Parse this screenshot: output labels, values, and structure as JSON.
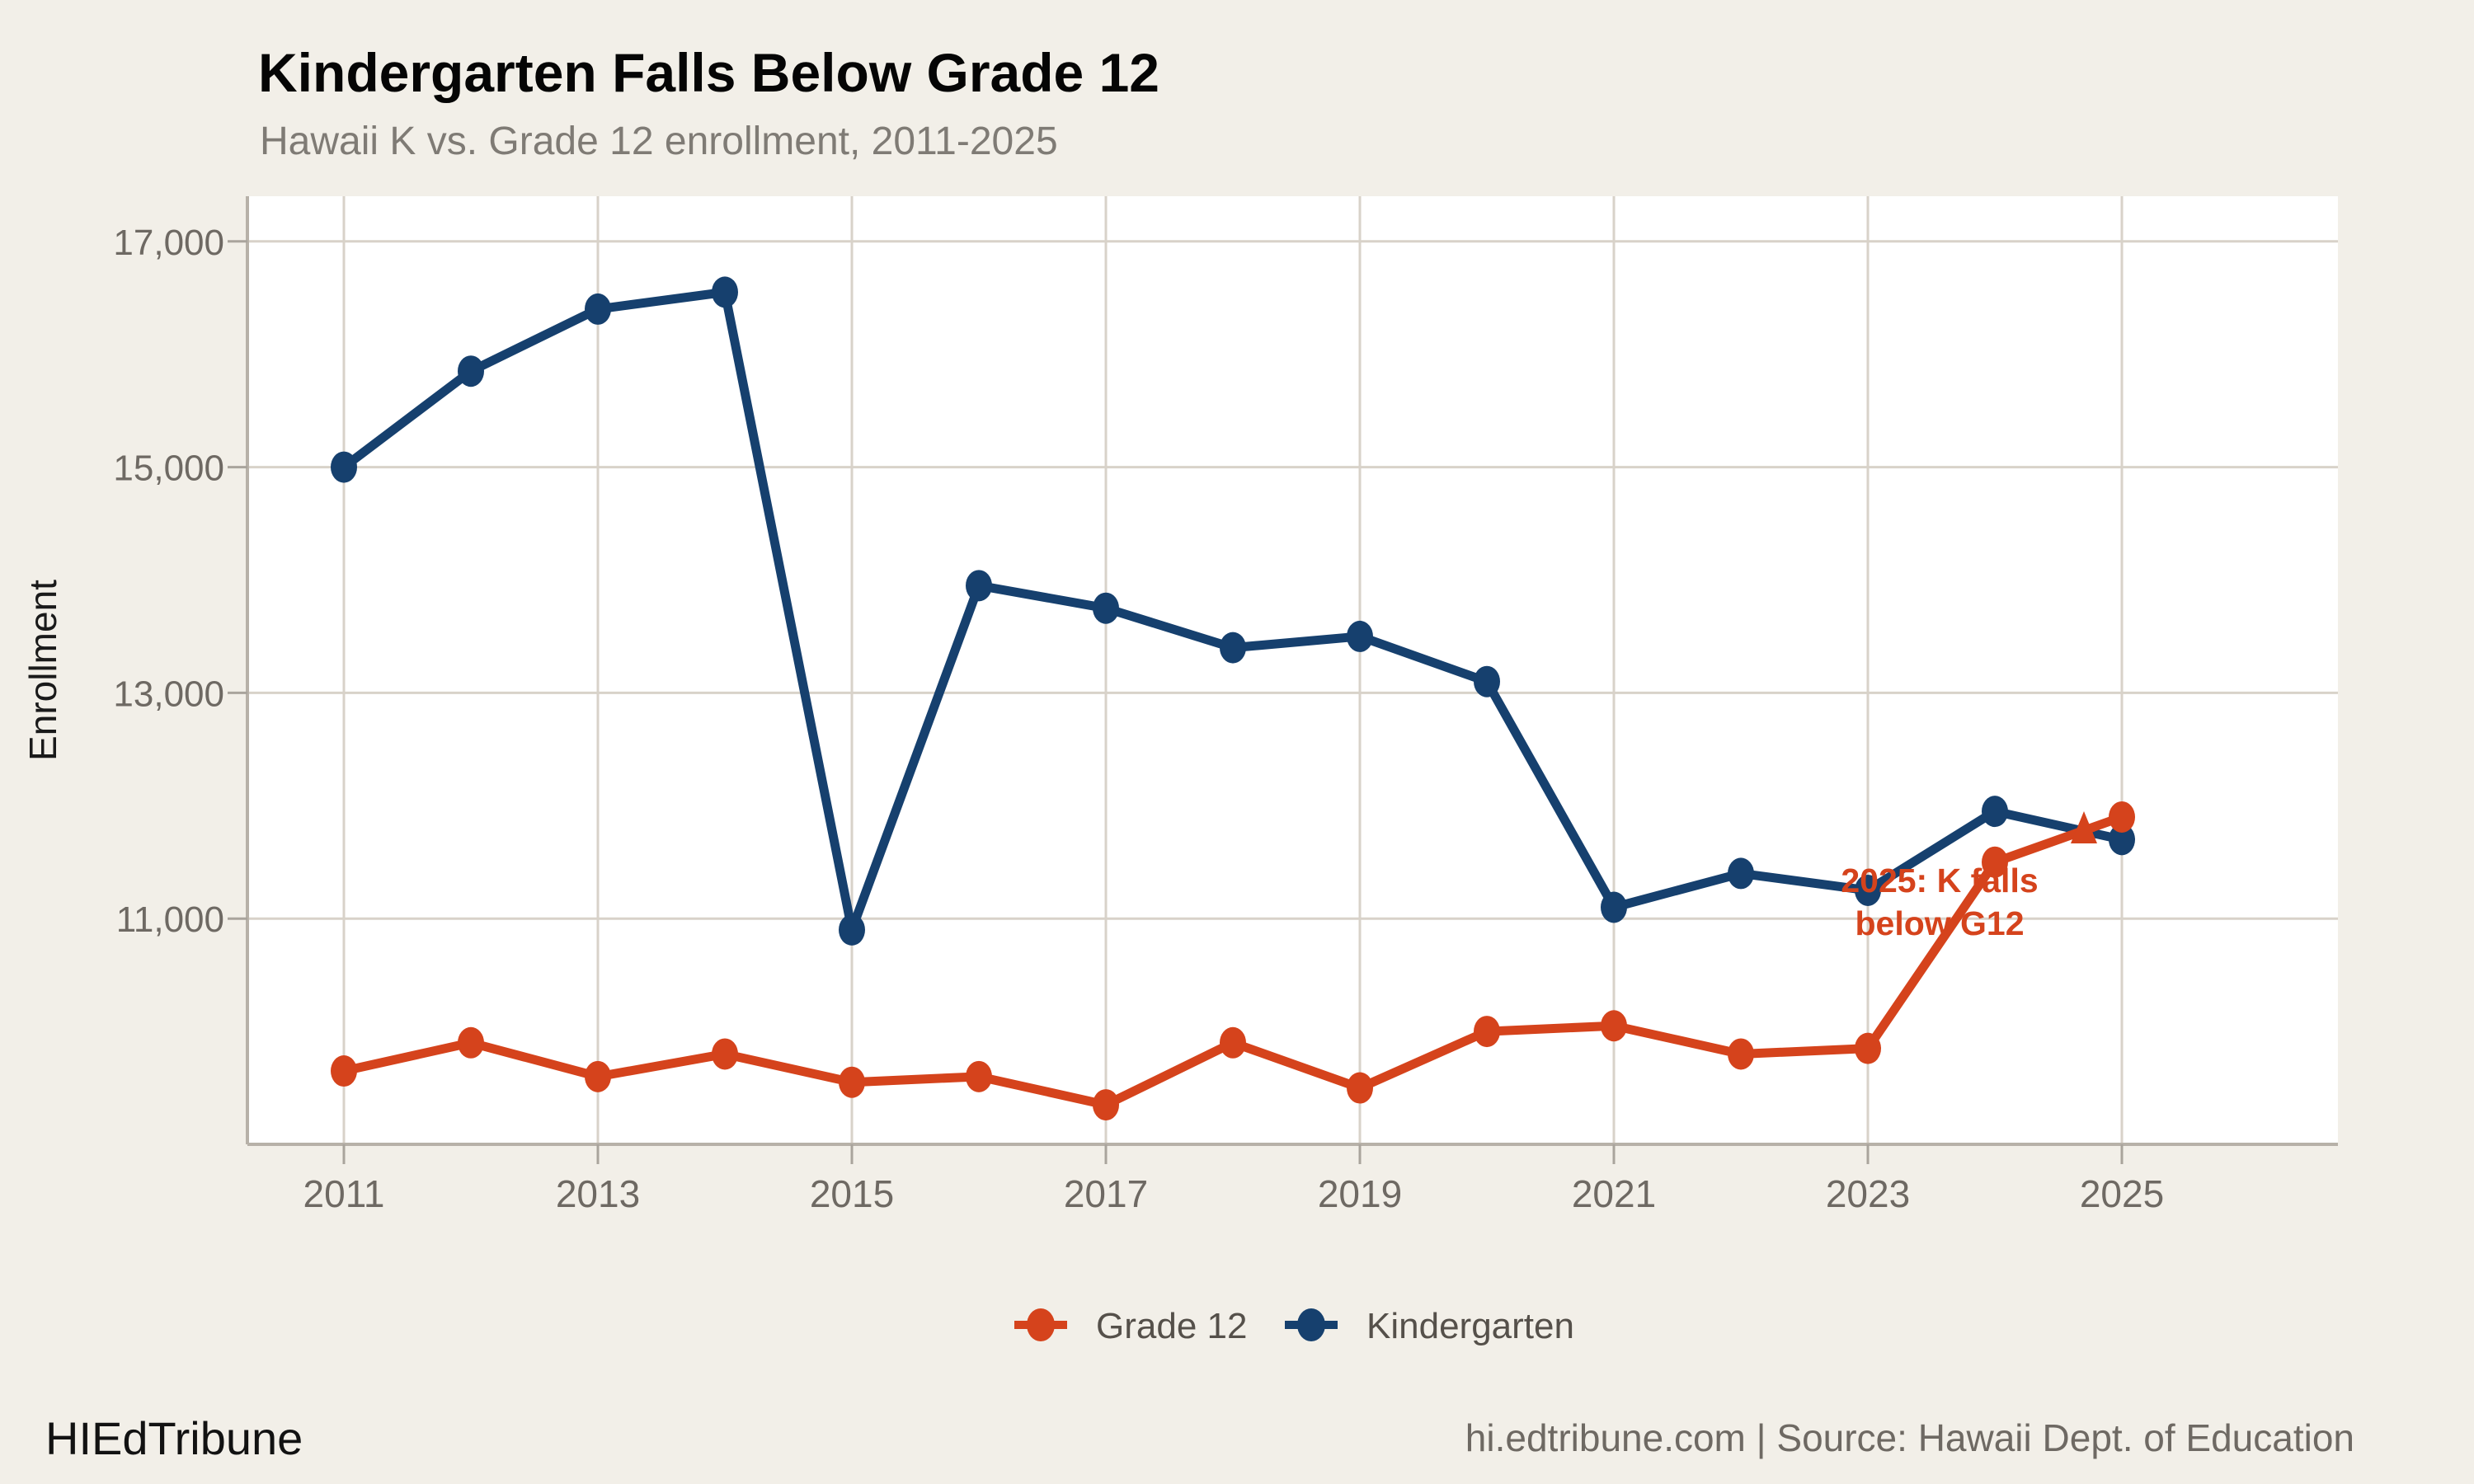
{
  "header": {
    "title": "Kindergarten Falls Below Grade 12",
    "subtitle": "Hawaii K vs. Grade 12 enrollment, 2011-2025"
  },
  "footer": {
    "brand": "HIEdTribune",
    "source": "hi.edtribune.com | Source: Hawaii Dept. of Education"
  },
  "theme": {
    "background": "#f2efe8",
    "panel_background": "#ffffff",
    "grid_color": "#d8d2c9",
    "axis_line_color": "#b7b1a8",
    "tick_color": "#a9a49c",
    "tick_label_color": "#6e6963",
    "axis_title_color": "#1a1a1a",
    "legend_text_color": "#55504a"
  },
  "chart_data": {
    "type": "line",
    "title": "Kindergarten Falls Below Grade 12",
    "subtitle": "Hawaii K vs. Grade 12 enrollment, 2011-2025",
    "xlabel": "",
    "ylabel": "Enrollment",
    "x": [
      2011,
      2012,
      2013,
      2014,
      2015,
      2016,
      2017,
      2018,
      2019,
      2020,
      2021,
      2022,
      2023,
      2024,
      2025
    ],
    "x_ticks": [
      2011,
      2013,
      2015,
      2017,
      2019,
      2021,
      2023,
      2025
    ],
    "x_tick_labels": [
      "2011",
      "2013",
      "2015",
      "2017",
      "2019",
      "2021",
      "2023",
      "2025"
    ],
    "y_ticks": [
      11000,
      13000,
      15000,
      17000
    ],
    "y_tick_labels": [
      "11,000",
      "13,000",
      "15,000",
      "17,000"
    ],
    "ylim": [
      9000,
      17400
    ],
    "grid": true,
    "legend_position": "bottom",
    "series": [
      {
        "name": "Grade 12",
        "color": "#d5431c",
        "values": [
          9650,
          9900,
          9600,
          9800,
          9550,
          9600,
          9350,
          9900,
          9500,
          10000,
          10050,
          9800,
          9850,
          11500,
          11900
        ]
      },
      {
        "name": "Kindergarten",
        "color": "#16406e",
        "values": [
          15000,
          15850,
          16400,
          16550,
          10900,
          13950,
          13750,
          13400,
          13500,
          13100,
          11100,
          11400,
          11250,
          11950,
          11700
        ]
      }
    ],
    "annotation": {
      "text_lines": [
        "2025: K falls",
        "below G12"
      ],
      "color": "#d5431c",
      "points_to": "crossover between 2024 and 2025"
    }
  }
}
